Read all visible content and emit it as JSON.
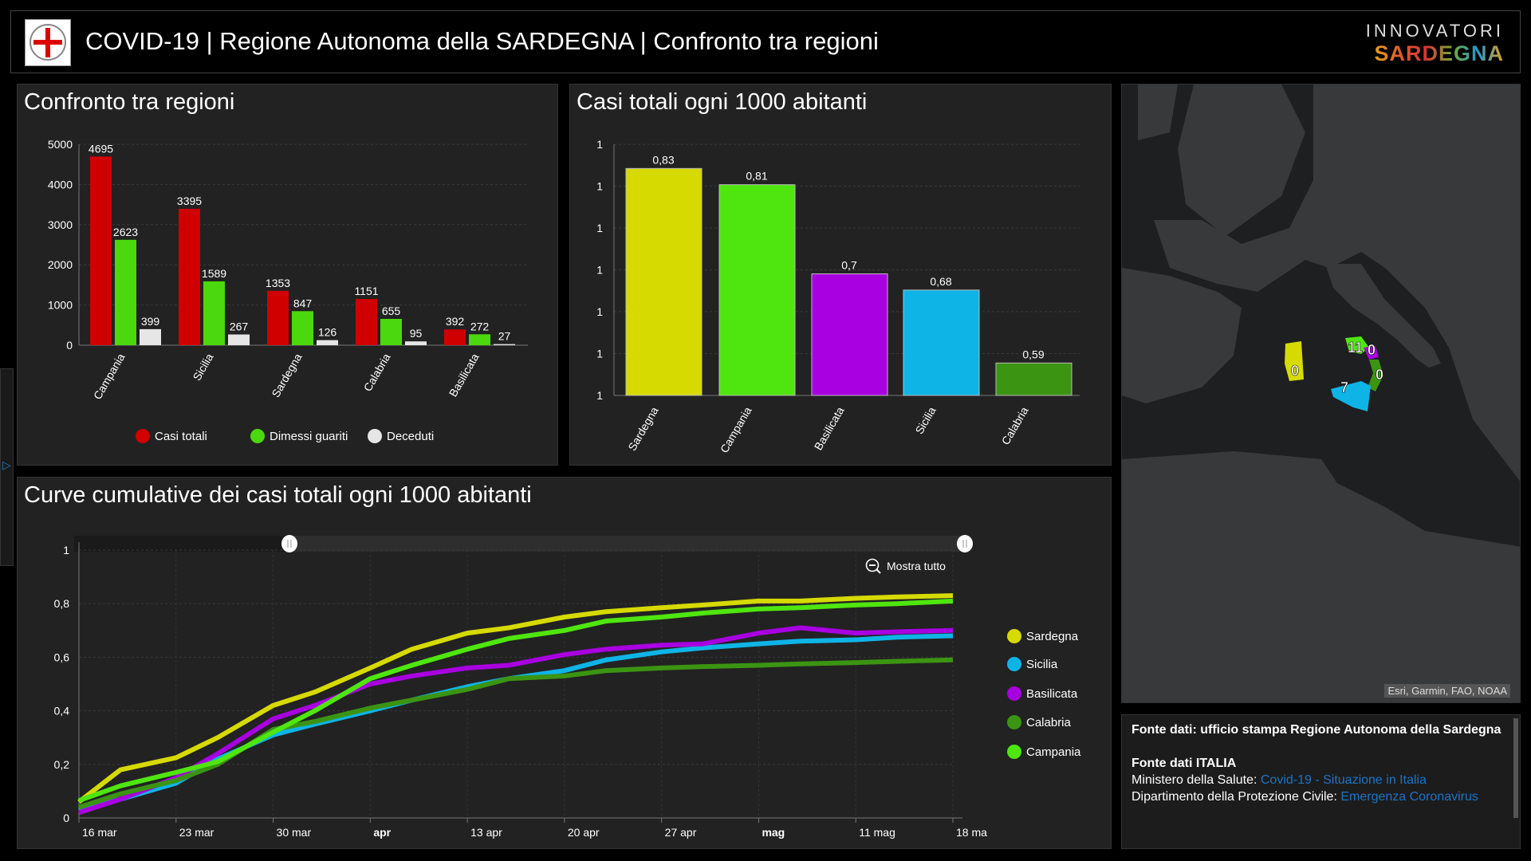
{
  "header": {
    "title": "COVID-19 | Regione Autonoma della SARDEGNA | Confronto tra regioni",
    "logo_top": "INNOVATORI",
    "logo_bottom": "SARDEGNA"
  },
  "colors": {
    "casi": "#d10000",
    "guariti": "#4bd80e",
    "deceduti": "#e6e6e6",
    "Sardegna": "#d6da00",
    "Sicilia": "#0fb4e6",
    "Basilicata": "#a800e0",
    "Calabria": "#3b9412",
    "Campania": "#4fe60f"
  },
  "panel1": {
    "title": "Confronto tra regioni"
  },
  "panel2": {
    "title": "Casi totali ogni 1000 abitanti"
  },
  "panel3": {
    "title": "Curve cumulative dei casi totali ogni 1000 abitanti",
    "zoom_label": "Mostra tutto"
  },
  "chart_data": [
    {
      "type": "bar",
      "categories": [
        "Campania",
        "Sicilia",
        "Sardegna",
        "Calabria",
        "Basilicata"
      ],
      "series": [
        {
          "name": "Casi totali",
          "values": [
            4695,
            3395,
            1353,
            1151,
            392
          ]
        },
        {
          "name": "Dimessi guariti",
          "values": [
            2623,
            1589,
            847,
            655,
            272
          ]
        },
        {
          "name": "Deceduti",
          "values": [
            399,
            267,
            126,
            95,
            27
          ]
        }
      ],
      "ylim": [
        0,
        5000
      ],
      "yticks": [
        "0",
        "1000",
        "2000",
        "3000",
        "4000",
        "5000"
      ],
      "grid": true,
      "legend": "bottom"
    },
    {
      "type": "bar",
      "categories": [
        "Sardegna",
        "Campania",
        "Basilicata",
        "Sicilia",
        "Calabria"
      ],
      "values": [
        0.83,
        0.81,
        0.7,
        0.68,
        0.59
      ],
      "labels": [
        "0,83",
        "0,81",
        "0,7",
        "0,68",
        "0,59"
      ],
      "ylim": [
        0.55,
        0.85
      ],
      "yticks": [
        "1",
        "1",
        "1",
        "1",
        "1",
        "1",
        "1"
      ],
      "grid": true
    },
    {
      "type": "line",
      "x": [
        "16 mar",
        "19 mar",
        "23 mar",
        "26 mar",
        "30 mar",
        "2 apr",
        "6 apr",
        "9 apr",
        "13 apr",
        "16 apr",
        "20 apr",
        "23 apr",
        "27 apr",
        "30 apr",
        "4 mag",
        "7 mag",
        "11 mag",
        "14 mag",
        "18 mag"
      ],
      "xticks": [
        "16 mar",
        "23 mar",
        "30 mar",
        "apr",
        "13 apr",
        "20 apr",
        "27 apr",
        "mag",
        "11 mag",
        "18 ma"
      ],
      "ylim": [
        0,
        1
      ],
      "yticks": [
        "0",
        "0,2",
        "0,4",
        "0,6",
        "0,8",
        "1"
      ],
      "grid": true,
      "legend": "right",
      "series": [
        {
          "name": "Sardegna",
          "values": [
            0.06,
            0.18,
            0.225,
            0.3,
            0.42,
            0.47,
            0.56,
            0.63,
            0.69,
            0.71,
            0.75,
            0.77,
            0.785,
            0.795,
            0.81,
            0.81,
            0.82,
            0.825,
            0.83
          ]
        },
        {
          "name": "Sicilia",
          "values": [
            0.03,
            0.07,
            0.13,
            0.22,
            0.31,
            0.35,
            0.4,
            0.44,
            0.49,
            0.52,
            0.55,
            0.59,
            0.62,
            0.635,
            0.65,
            0.66,
            0.665,
            0.675,
            0.68
          ]
        },
        {
          "name": "Basilicata",
          "values": [
            0.02,
            0.07,
            0.15,
            0.24,
            0.37,
            0.42,
            0.5,
            0.53,
            0.56,
            0.57,
            0.61,
            0.63,
            0.645,
            0.65,
            0.69,
            0.71,
            0.69,
            0.695,
            0.7
          ]
        },
        {
          "name": "Calabria",
          "values": [
            0.04,
            0.09,
            0.14,
            0.2,
            0.33,
            0.36,
            0.41,
            0.44,
            0.48,
            0.52,
            0.53,
            0.55,
            0.56,
            0.565,
            0.57,
            0.575,
            0.58,
            0.585,
            0.59
          ]
        },
        {
          "name": "Campania",
          "values": [
            0.065,
            0.12,
            0.17,
            0.21,
            0.32,
            0.4,
            0.52,
            0.57,
            0.63,
            0.67,
            0.7,
            0.735,
            0.75,
            0.765,
            0.78,
            0.785,
            0.795,
            0.8,
            0.81
          ]
        }
      ]
    }
  ],
  "map": {
    "attribution": "Esri, Garmin, FAO, NOAA",
    "labels": [
      "0",
      "11",
      "0",
      "0",
      "7"
    ]
  },
  "footer": {
    "line1": "Fonte dati: ufficio stampa Regione Autonoma della Sardegna",
    "heading2": "Fonte dati ITALIA",
    "ministero_label": "Ministero della Salute: ",
    "ministero_link": "Covid-19 - Situazione in Italia",
    "protezione_label": "Dipartimento della Protezione Civile: ",
    "protezione_link": "Emergenza Coronavirus"
  }
}
